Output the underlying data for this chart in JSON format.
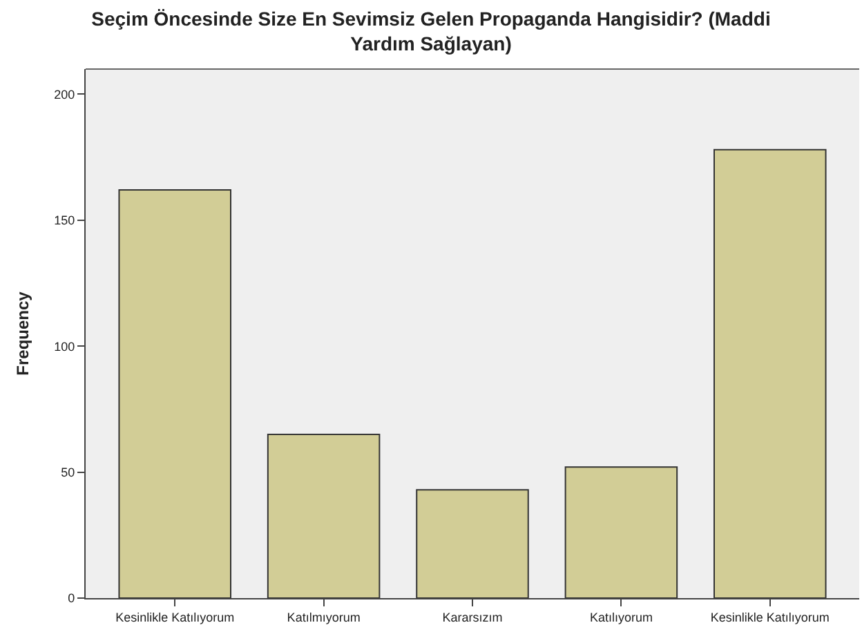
{
  "chart_data": {
    "type": "bar",
    "title": "Seçim Öncesinde Size En Sevimsiz Gelen Propaganda Hangisidir? (Maddi\nYardım Sağlayan)",
    "ylabel": "Frequency",
    "categories": [
      "Kesinlikle Katılıyorum",
      "Katılmıyorum",
      "Kararsızım",
      "Katılıyorum",
      "Kesinlikle Katılıyorum"
    ],
    "values": [
      162,
      65,
      43,
      52,
      178
    ],
    "color": "#d2cd96",
    "ylim": [
      0,
      210
    ],
    "yticks": [
      0,
      50,
      100,
      150,
      200
    ],
    "grid": false
  }
}
